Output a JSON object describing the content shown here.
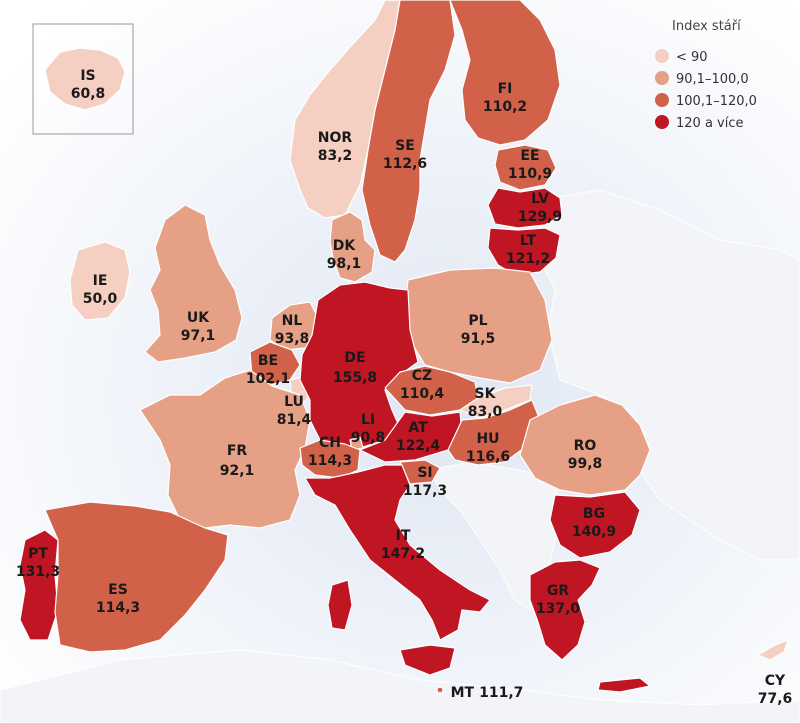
{
  "colors": {
    "sea": "#e9eef7",
    "land_nodata": "#eeeeee",
    "lt90": "#f5cfc2",
    "c90_100": "#e5a086",
    "c100_120": "#d2614a",
    "c120plus": "#c01522"
  },
  "legend": {
    "title": "Index stáří",
    "items": [
      {
        "label": "< 90",
        "class": "lt90"
      },
      {
        "label": "90,1–100,0",
        "class": "c90_100"
      },
      {
        "label": "100,1–120,0",
        "class": "c100_120"
      },
      {
        "label": "120 a více",
        "class": "c120plus"
      }
    ]
  },
  "countries": {
    "IS": {
      "code": "IS",
      "value": "60,8",
      "class": "lt90"
    },
    "NOR": {
      "code": "NOR",
      "value": "83,2",
      "class": "lt90"
    },
    "SE": {
      "code": "SE",
      "value": "112,6",
      "class": "c100_120"
    },
    "FI": {
      "code": "FI",
      "value": "110,2",
      "class": "c100_120"
    },
    "EE": {
      "code": "EE",
      "value": "110,9",
      "class": "c100_120"
    },
    "LV": {
      "code": "LV",
      "value": "129,9",
      "class": "c120plus"
    },
    "LT": {
      "code": "LT",
      "value": "121,2",
      "class": "c120plus"
    },
    "DK": {
      "code": "DK",
      "value": "98,1",
      "class": "c90_100"
    },
    "IE": {
      "code": "IE",
      "value": "50,0",
      "class": "lt90"
    },
    "UK": {
      "code": "UK",
      "value": "97,1",
      "class": "c90_100"
    },
    "NL": {
      "code": "NL",
      "value": "93,8",
      "class": "c90_100"
    },
    "BE": {
      "code": "BE",
      "value": "102,1",
      "class": "c100_120"
    },
    "LU": {
      "code": "LU",
      "value": "81,4",
      "class": "lt90"
    },
    "DE": {
      "code": "DE",
      "value": "155,8",
      "class": "c120plus"
    },
    "PL": {
      "code": "PL",
      "value": "91,5",
      "class": "c90_100"
    },
    "CZ": {
      "code": "CZ",
      "value": "110,4",
      "class": "c100_120"
    },
    "SK": {
      "code": "SK",
      "value": "83,0",
      "class": "lt90"
    },
    "FR": {
      "code": "FR",
      "value": "92,1",
      "class": "c90_100"
    },
    "LI": {
      "code": "LI",
      "value": "90,8",
      "class": "c90_100"
    },
    "CH": {
      "code": "CH",
      "value": "114,3",
      "class": "c100_120"
    },
    "AT": {
      "code": "AT",
      "value": "122,4",
      "class": "c120plus"
    },
    "HU": {
      "code": "HU",
      "value": "116,6",
      "class": "c100_120"
    },
    "SI": {
      "code": "SI",
      "value": "117,3",
      "class": "c100_120"
    },
    "RO": {
      "code": "RO",
      "value": "99,8",
      "class": "c90_100"
    },
    "BG": {
      "code": "BG",
      "value": "140,9",
      "class": "c120plus"
    },
    "PT": {
      "code": "PT",
      "value": "131,3",
      "class": "c120plus"
    },
    "ES": {
      "code": "ES",
      "value": "114,3",
      "class": "c100_120"
    },
    "IT": {
      "code": "IT",
      "value": "147,2",
      "class": "c120plus"
    },
    "GR": {
      "code": "GR",
      "value": "137,0",
      "class": "c120plus"
    },
    "MT": {
      "code": "MT",
      "value": "111,7",
      "class": "c100_120"
    },
    "CY": {
      "code": "CY",
      "value": "77,6",
      "class": "lt90"
    }
  }
}
